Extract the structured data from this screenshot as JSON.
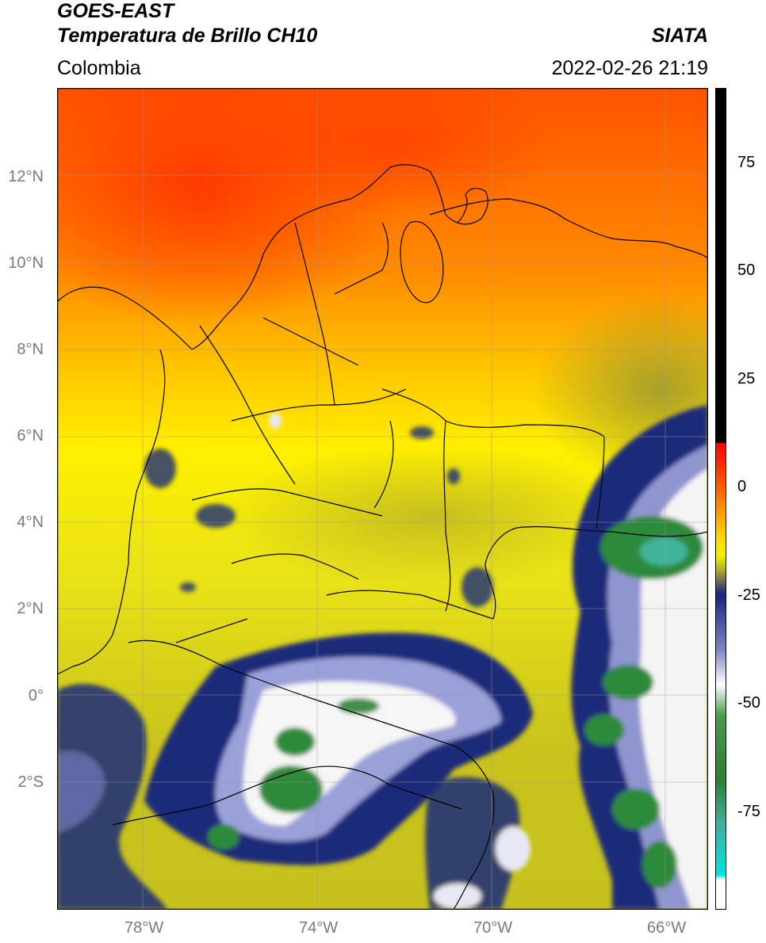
{
  "header": {
    "title_line1": "GOES-EAST",
    "title_line2": "Temperatura de Brillo CH10",
    "region": "Colombia",
    "source": "SIATA",
    "datetime": "2022-02-26 21:19"
  },
  "map": {
    "lat_labels": [
      "12°N",
      "10°N",
      "8°N",
      "6°N",
      "4°N",
      "2°N",
      "0°",
      "2°S"
    ],
    "lon_labels": [
      "78°W",
      "74°W",
      "70°W",
      "66°W"
    ],
    "colors": {
      "red": "#ff3a00",
      "orange": "#ff9a00",
      "yellow": "#fff200",
      "olive": "#b9b420",
      "navy": "#1b2a7a",
      "white": "#ffffff",
      "green": "#2f8a3a",
      "teal": "#3fb49a"
    }
  },
  "colorbar": {
    "tick_labels": [
      "75",
      "50",
      "25",
      "0",
      "-25",
      "-50",
      "-75"
    ],
    "range": [
      -100,
      90
    ],
    "stops": [
      {
        "v": 90,
        "c": "#000000"
      },
      {
        "v": 8,
        "c": "#000000"
      },
      {
        "v": 7.9,
        "c": "#ff0000"
      },
      {
        "v": -2,
        "c": "#ff5a00"
      },
      {
        "v": -8,
        "c": "#ff9a00"
      },
      {
        "v": -14,
        "c": "#ffd800"
      },
      {
        "v": -18,
        "c": "#f4ee00"
      },
      {
        "v": -21,
        "c": "#bdb81c"
      },
      {
        "v": -24,
        "c": "#6f6a5a"
      },
      {
        "v": -27,
        "c": "#1a237e"
      },
      {
        "v": -40,
        "c": "#7f86c4"
      },
      {
        "v": -48,
        "c": "#ffffff"
      },
      {
        "v": -55,
        "c": "#4c9a4c"
      },
      {
        "v": -70,
        "c": "#2e7d32"
      },
      {
        "v": -80,
        "c": "#3fb09a"
      },
      {
        "v": -92,
        "c": "#00e5e5"
      },
      {
        "v": -93,
        "c": "#ffffff"
      },
      {
        "v": -100,
        "c": "#ffffff"
      }
    ]
  }
}
